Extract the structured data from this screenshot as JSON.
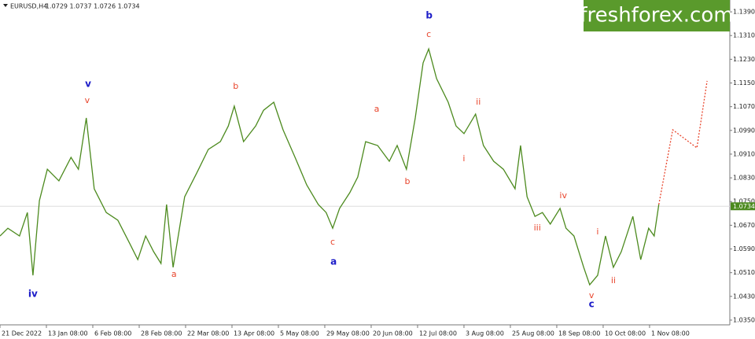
{
  "chart_data": {
    "type": "line",
    "title": "EURUSD,H4",
    "subtitle": "1.0729 1.0737 1.0726 1.0734",
    "watermark": "freshforex.com",
    "xlim": [
      0,
      157.3
    ],
    "ylim": [
      1.0334,
      1.143
    ],
    "xticks": [
      {
        "value": 0,
        "label": "21 Dec 2022"
      },
      {
        "value": 10,
        "label": "13 Jan 08:00"
      },
      {
        "value": 20,
        "label": "6 Feb 08:00"
      },
      {
        "value": 30,
        "label": "28 Feb 08:00"
      },
      {
        "value": 40,
        "label": "22 Mar 08:00"
      },
      {
        "value": 50,
        "label": "13 Apr 08:00"
      },
      {
        "value": 60,
        "label": "5 May 08:00"
      },
      {
        "value": 70,
        "label": "29 May 08:00"
      },
      {
        "value": 80,
        "label": "20 Jun 08:00"
      },
      {
        "value": 90,
        "label": "12 Jul 08:00"
      },
      {
        "value": 100,
        "label": "3 Aug 08:00"
      },
      {
        "value": 110,
        "label": "25 Aug 08:00"
      },
      {
        "value": 120,
        "label": "18 Sep 08:00"
      },
      {
        "value": 130,
        "label": "10 Oct 08:00"
      },
      {
        "value": 140,
        "label": "1 Nov 08:00"
      }
    ],
    "yticks": [
      {
        "value": 1.035,
        "label": "1.0350"
      },
      {
        "value": 1.043,
        "label": "1.0430"
      },
      {
        "value": 1.051,
        "label": "1.0510"
      },
      {
        "value": 1.059,
        "label": "1.0590"
      },
      {
        "value": 1.067,
        "label": "1.0670"
      },
      {
        "value": 1.075,
        "label": "1.0750"
      },
      {
        "value": 1.083,
        "label": "1.0830"
      },
      {
        "value": 1.091,
        "label": "1.0910"
      },
      {
        "value": 1.099,
        "label": "1.0990"
      },
      {
        "value": 1.107,
        "label": "1.1070"
      },
      {
        "value": 1.115,
        "label": "1.1150"
      },
      {
        "value": 1.123,
        "label": "1.1230"
      },
      {
        "value": 1.131,
        "label": "1.1310"
      },
      {
        "value": 1.139,
        "label": "1.1390"
      }
    ],
    "last_price": {
      "value": 1.0734,
      "label": "1.0734"
    },
    "series": [
      {
        "color": "#4c8a1e",
        "dashed": false,
        "x": [
          0,
          1.7,
          4.2,
          5.9,
          7.1,
          8.5,
          10.2,
          12.7,
          15.3,
          16.9,
          18.6,
          20.3,
          22.9,
          25.4,
          28,
          29.7,
          31.4,
          33.1,
          34.7,
          35.9,
          37.3,
          39.8,
          42.4,
          44.9,
          47.5,
          49.2,
          50.5,
          52.5,
          55.1,
          56.8,
          59,
          61,
          63.6,
          66.1,
          68.6,
          70.3,
          71.7,
          73.2,
          75.4,
          77.1,
          78.8,
          81.4,
          83.9,
          85.6,
          87.6,
          89.5,
          91.2,
          92.4,
          94.1,
          96.6,
          98.3,
          100,
          102.5,
          104.2,
          106.4,
          108.5,
          111,
          112.2,
          113.6,
          115.3,
          116.9,
          118.6,
          120.7,
          122,
          123.7,
          125.8,
          127.1,
          128.8,
          130.5,
          132.2,
          133.9,
          136.4,
          138.1,
          139.8,
          141,
          142
        ],
        "values": [
          1.0634,
          1.066,
          1.0634,
          1.0713,
          1.0501,
          1.0753,
          1.0859,
          1.082,
          1.0899,
          1.0859,
          1.1032,
          1.0793,
          1.0713,
          1.0687,
          1.0607,
          1.0554,
          1.0634,
          1.0581,
          1.0541,
          1.074,
          1.0528,
          1.0766,
          1.0846,
          1.0926,
          1.0952,
          1.1005,
          1.1072,
          1.0952,
          1.1005,
          1.1058,
          1.1085,
          1.0992,
          1.0899,
          1.0806,
          1.074,
          1.0713,
          1.066,
          1.0727,
          1.078,
          1.0833,
          1.0952,
          1.0939,
          1.0886,
          1.0939,
          1.0859,
          1.1032,
          1.1218,
          1.1265,
          1.1165,
          1.1085,
          1.1005,
          1.0979,
          1.1045,
          1.0939,
          1.0886,
          1.0859,
          1.0793,
          1.0939,
          1.0766,
          1.07,
          1.0713,
          1.0674,
          1.0727,
          1.066,
          1.0634,
          1.0528,
          1.0469,
          1.0501,
          1.0634,
          1.0528,
          1.0581,
          1.07,
          1.0554,
          1.066,
          1.0634,
          1.074
        ]
      },
      {
        "color": "#e8452c",
        "dashed": true,
        "x": [
          142,
          145,
          150.2,
          152.4
        ],
        "values": [
          1.074,
          1.0992,
          1.0931,
          1.1157
        ]
      }
    ],
    "annotations": [
      {
        "text": "iv",
        "x": 7.1,
        "y": 1.0437,
        "color": "#1c1cc8"
      },
      {
        "text": "v",
        "x": 19,
        "y": 1.1146,
        "color": "#1c1cc8"
      },
      {
        "text": "a",
        "x": 71.9,
        "y": 1.0546,
        "color": "#1c1cc8"
      },
      {
        "text": "b",
        "x": 92.5,
        "y": 1.1377,
        "color": "#1c1cc8"
      },
      {
        "text": "c",
        "x": 127.5,
        "y": 1.0403,
        "color": "#1c1cc8"
      },
      {
        "text": "v",
        "x": 18.8,
        "y": 1.109,
        "color": "#e8452c"
      },
      {
        "text": "a",
        "x": 37.5,
        "y": 1.0504,
        "color": "#e8452c"
      },
      {
        "text": "b",
        "x": 50.8,
        "y": 1.1138,
        "color": "#e8452c"
      },
      {
        "text": "c",
        "x": 71.7,
        "y": 1.0613,
        "color": "#e8452c"
      },
      {
        "text": "a",
        "x": 81.2,
        "y": 1.1061,
        "color": "#e8452c"
      },
      {
        "text": "b",
        "x": 87.8,
        "y": 1.0817,
        "color": "#e8452c"
      },
      {
        "text": "c",
        "x": 92.4,
        "y": 1.1313,
        "color": "#e8452c"
      },
      {
        "text": "ii",
        "x": 103.1,
        "y": 1.1085,
        "color": "#e8452c"
      },
      {
        "text": "i",
        "x": 100,
        "y": 1.0894,
        "color": "#e8452c"
      },
      {
        "text": "iv",
        "x": 121.4,
        "y": 1.0769,
        "color": "#e8452c"
      },
      {
        "text": "iii",
        "x": 115.8,
        "y": 1.066,
        "color": "#e8452c"
      },
      {
        "text": "v",
        "x": 127.5,
        "y": 1.0432,
        "color": "#e8452c"
      },
      {
        "text": "i",
        "x": 128.8,
        "y": 1.0647,
        "color": "#e8452c"
      },
      {
        "text": "ii",
        "x": 132.2,
        "y": 1.0483,
        "color": "#e8452c"
      }
    ]
  }
}
